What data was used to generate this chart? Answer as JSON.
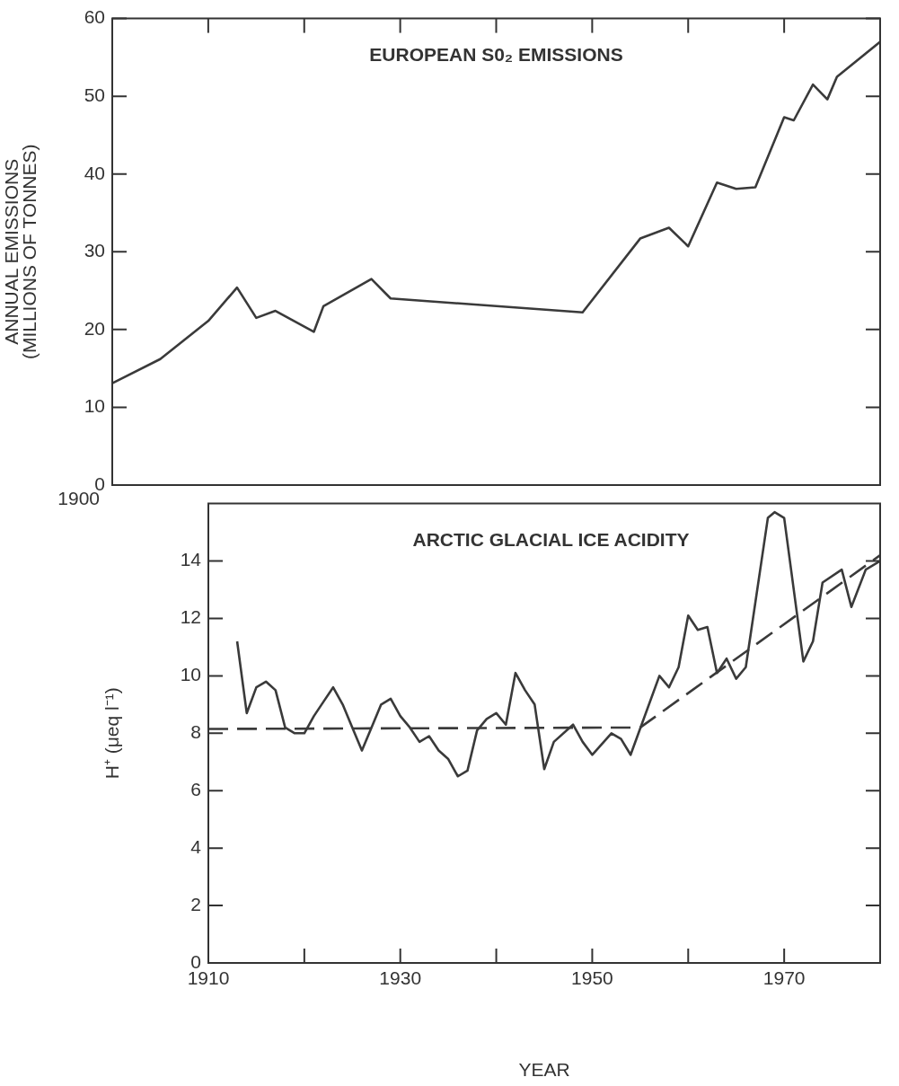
{
  "chart_data": [
    {
      "type": "line",
      "title": "EUROPEAN S0₂ EMISSIONS",
      "ylabel": "ANNUAL EMISSIONS\n(MILLIONS OF TONNES)",
      "annotations": [
        "1900"
      ],
      "tick_labels": "y",
      "xlim": [
        1900,
        1980
      ],
      "xticks": [
        1910,
        1920,
        1930,
        1940,
        1950,
        1960,
        1970
      ],
      "ylim": [
        0,
        60
      ],
      "yticks": [
        0,
        10,
        20,
        30,
        40,
        50,
        60
      ],
      "grid": false,
      "marker": "none",
      "line_style": "solid",
      "series": [
        {
          "color": "#3a3a3a",
          "x": [
            1900,
            1905,
            1910,
            1913,
            1915,
            1917,
            1921,
            1922,
            1927,
            1929,
            1949,
            1955,
            1958,
            1960,
            1963,
            1965,
            1967,
            1970,
            1971,
            1973,
            1974.5,
            1975.5,
            1980
          ],
          "values": [
            13.1,
            16.2,
            21.1,
            25.4,
            21.5,
            22.4,
            19.7,
            23,
            26.5,
            24,
            22.2,
            31.7,
            33.1,
            30.7,
            38.9,
            38.1,
            38.3,
            47.3,
            46.9,
            51.5,
            49.6,
            52.5,
            57
          ]
        }
      ]
    },
    {
      "type": "line",
      "title": "ARCTIC GLACIAL ICE ACIDITY",
      "xlabel": "YEAR",
      "ylabel": "H⁺ (μeq l⁻¹)",
      "xlim": [
        1910,
        1980
      ],
      "xticks": [
        1910,
        {
          "value": 1920,
          "label": null
        },
        1930,
        {
          "value": 1940,
          "label": null
        },
        1950,
        {
          "value": 1960,
          "label": null
        },
        1970
      ],
      "ylim": [
        0,
        16
      ],
      "yticks": [
        0,
        2,
        4,
        6,
        8,
        10,
        12,
        14
      ],
      "grid": false,
      "marker": "none",
      "line_style": "solid",
      "series": [
        {
          "color": "#3a3a3a",
          "x": [
            1913,
            1914,
            1915,
            1916,
            1917,
            1918,
            1919,
            1920,
            1921,
            1922,
            1923,
            1924,
            1925,
            1926,
            1927,
            1928,
            1929,
            1930,
            1931,
            1932,
            1933,
            1934,
            1935,
            1936,
            1937,
            1938,
            1939,
            1940,
            1941,
            1942,
            1943,
            1944,
            1945,
            1946,
            1948,
            1949,
            1950,
            1952,
            1953,
            1954,
            1957,
            1958,
            1959,
            1960,
            1961,
            1962,
            1963,
            1964,
            1965,
            1966,
            1968.3,
            1969,
            1970,
            1972,
            1973,
            1974,
            1976,
            1977,
            1978.5,
            1980
          ],
          "values": [
            11.2,
            8.7,
            9.6,
            9.8,
            9.5,
            8.2,
            8.0,
            8.0,
            8.6,
            9.1,
            9.6,
            9.0,
            8.2,
            7.4,
            8.2,
            9.0,
            9.2,
            8.6,
            8.2,
            7.7,
            7.9,
            7.4,
            7.1,
            6.5,
            6.7,
            8.1,
            8.5,
            8.7,
            8.3,
            10.1,
            9.5,
            9.0,
            6.75,
            7.7,
            8.3,
            7.7,
            7.25,
            8.0,
            7.8,
            7.25,
            10.0,
            9.6,
            10.3,
            12.1,
            11.6,
            11.7,
            10.1,
            10.6,
            9.9,
            10.3,
            15.5,
            15.7,
            15.5,
            10.5,
            11.2,
            13.25,
            13.7,
            12.4,
            13.7,
            14.0
          ]
        },
        {
          "type": "line",
          "color": "#3a3a3a",
          "line_style": "dashed",
          "x": [
            1910,
            1955,
            1980
          ],
          "values": [
            8.15,
            8.2,
            14.2
          ]
        }
      ]
    }
  ]
}
